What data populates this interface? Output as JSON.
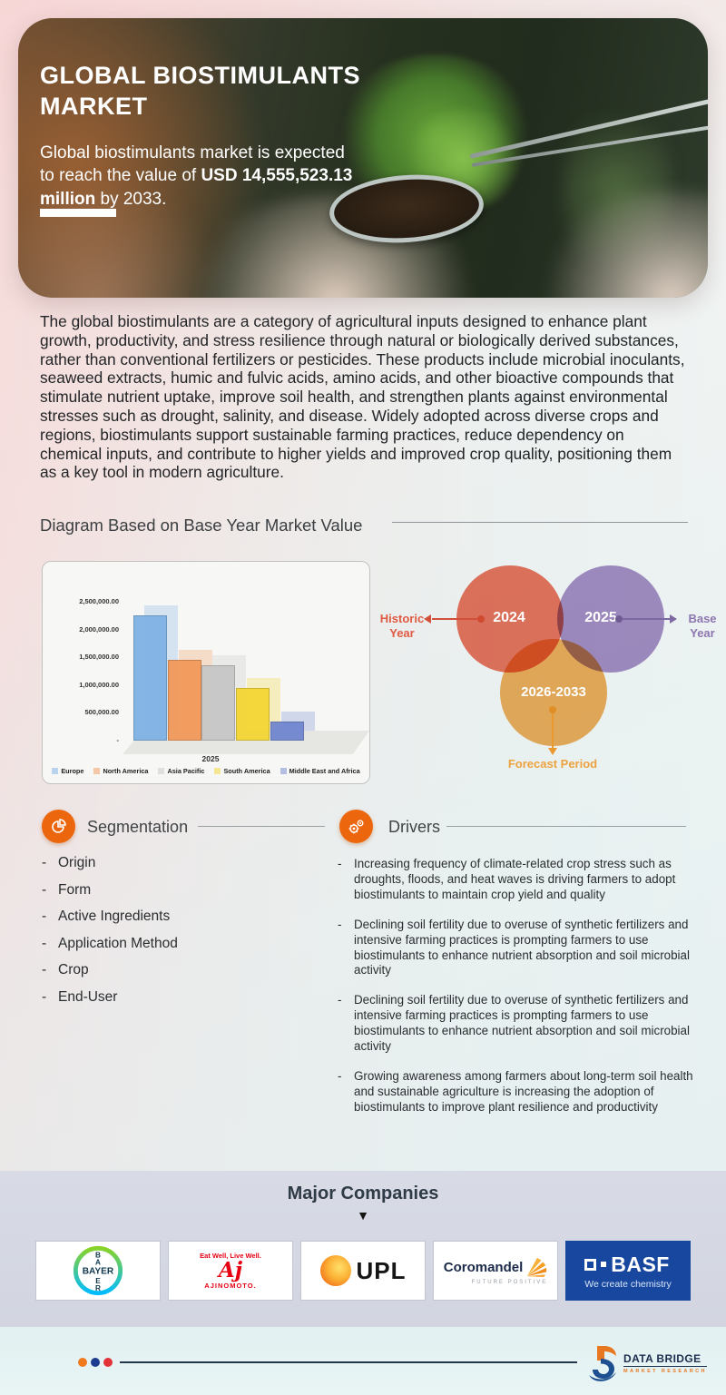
{
  "hero": {
    "title": "GLOBAL BIOSTIMULANTS MARKET",
    "subtitle_prefix": "Global biostimulants market is expected to reach the value of ",
    "subtitle_bold": "USD 14,555,523.13 million",
    "subtitle_suffix": " by 2033."
  },
  "intro": "The global biostimulants are a category of agricultural inputs designed to enhance plant growth, productivity, and stress resilience through natural or biologically derived substances, rather than conventional fertilizers or pesticides. These products include microbial inoculants, seaweed extracts, humic and fulvic acids, amino acids, and other bioactive compounds that stimulate nutrient uptake, improve soil health, and strengthen plants against environmental stresses such as drought, salinity, and disease. Widely adopted across diverse crops and regions, biostimulants support sustainable farming practices, reduce dependency on chemical inputs, and contribute to higher yields and improved crop quality, positioning them as a key tool in modern agriculture.",
  "diagram_heading": "Diagram Based on Base Year Market Value",
  "chart_data": {
    "type": "bar",
    "title": "",
    "x_label": "2025",
    "categories": [
      "Europe",
      "North America",
      "Asia Pacific",
      "South America",
      "Middle East and Africa"
    ],
    "values": [
      2250000,
      1450000,
      1350000,
      950000,
      350000
    ],
    "ylim": [
      0,
      2500000
    ],
    "yticks": [
      "2,500,000.00",
      "2,000,000.00",
      "1,500,000.00",
      "1,000,000.00",
      "500,000.00",
      "-"
    ],
    "colors": [
      "#7FB2E5",
      "#F2995A",
      "#C7C7C7",
      "#F4D633",
      "#7186CF"
    ],
    "legend_position": "bottom",
    "grid": false
  },
  "venn": {
    "historic": {
      "year": "2024",
      "label": "Historic Year",
      "color": "#E05A41"
    },
    "base": {
      "year": "2025",
      "label": "Base Year",
      "color": "#8D76B0"
    },
    "forecast": {
      "year": "2026-2033",
      "label": "Forecast Period",
      "color": "#EDA23F"
    }
  },
  "segmentation": {
    "title": "Segmentation",
    "items": [
      "Origin",
      "Form",
      "Active Ingredients",
      "Application Method",
      "Crop",
      "End-User"
    ]
  },
  "drivers": {
    "title": "Drivers",
    "items": [
      "Increasing frequency of climate-related crop stress such as droughts, floods, and heat waves is driving farmers to adopt biostimulants to maintain crop yield and quality",
      "Declining soil fertility due to overuse of synthetic fertilizers and intensive farming practices is prompting farmers to use biostimulants to enhance nutrient absorption and soil microbial activity",
      "Declining soil fertility due to overuse of synthetic fertilizers and intensive farming practices is prompting farmers to use biostimulants to enhance nutrient absorption and soil microbial activity",
      "Growing awareness among farmers about long-term soil health and sustainable agriculture is increasing the adoption of biostimulants to improve plant resilience and productivity"
    ]
  },
  "companies": {
    "title": "Major Companies",
    "bayer": {
      "name": "BAYER",
      "vertical": [
        "B",
        "A",
        "E",
        "R"
      ]
    },
    "ajinomoto": {
      "tagline": "Eat Well, Live Well.",
      "monogram": "Aj",
      "name": "AJINOMOTO."
    },
    "upl": {
      "name": "UPL"
    },
    "coromandel": {
      "name": "Coromandel",
      "tagline": "FUTURE POSITIVE"
    },
    "basf": {
      "name": "BASF",
      "tagline": "We create chemistry"
    }
  },
  "footer": {
    "brand": "DATA BRIDGE",
    "brand_sub": "MARKET RESEARCH"
  }
}
